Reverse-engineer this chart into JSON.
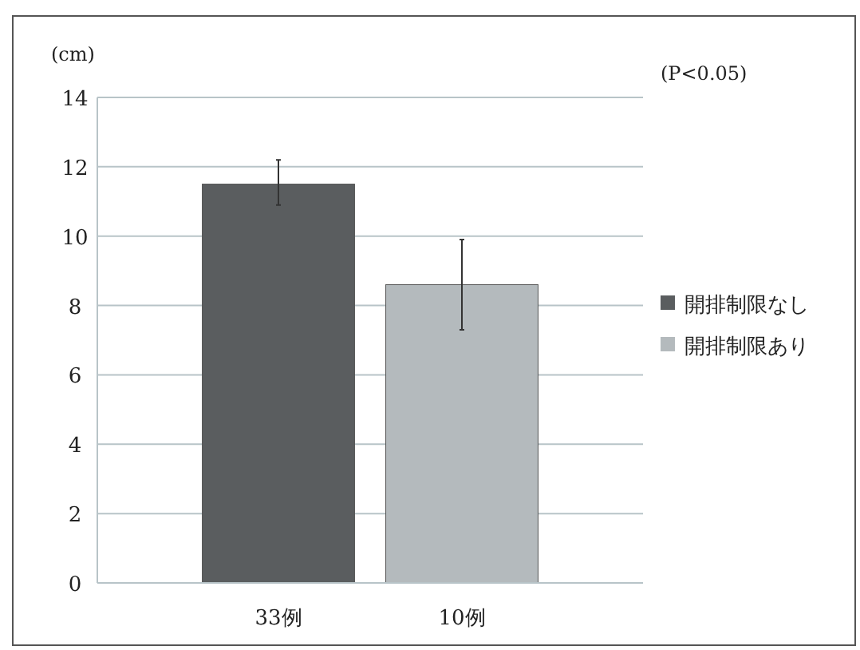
{
  "chart_data": {
    "type": "bar",
    "ylabel": "(cm)",
    "annotations": [
      "(P<0.05)"
    ],
    "categories": [
      "33例",
      "10例"
    ],
    "series": [
      {
        "name": "開排制限なし",
        "color": "#5a5d5f",
        "values": [
          11.5,
          null
        ],
        "errors": [
          [
            10.9,
            12.2
          ],
          null
        ]
      },
      {
        "name": "開排制限あり",
        "color": "#b4babd",
        "values": [
          null,
          8.6
        ],
        "errors": [
          null,
          [
            7.3,
            9.9
          ]
        ]
      }
    ],
    "ylim": [
      0,
      14
    ],
    "yticks": [
      0,
      2,
      4,
      6,
      8,
      10,
      12,
      14
    ],
    "grid": "y",
    "legend": "right"
  }
}
